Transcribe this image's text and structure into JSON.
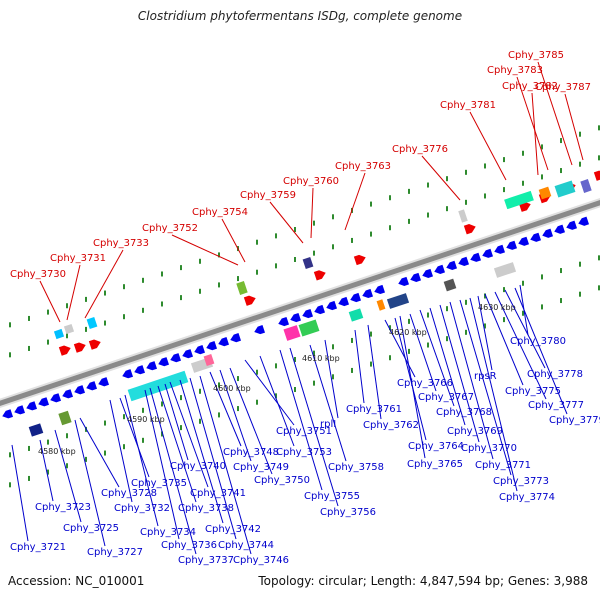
{
  "title": "Clostridium phytofermentans ISDg, complete genome",
  "accession": "Accession: NC_010001",
  "summary": "Topology: circular; Length: 4,847,594 bp; Genes: 3,988",
  "colors": {
    "top_label": "#d40000",
    "bottom_label": "#0000cc",
    "backbone": "#8a8a8a",
    "forward_gene": "#ee0000",
    "reverse_gene": "#0000ee",
    "tick": "#2e8b2e"
  },
  "scale_labels": [
    "4580 kbp",
    "4590 kbp",
    "4600 kbp",
    "4610 kbp",
    "4620 kbp",
    "4630 kbp"
  ],
  "top_labels": [
    "Cphy_3730",
    "Cphy_3731",
    "Cphy_3733",
    "Cphy_3752",
    "Cphy_3754",
    "Cphy_3759",
    "Cphy_3760",
    "Cphy_3763",
    "Cphy_3776",
    "Cphy_3781",
    "Cphy_3782",
    "Cphy_3783",
    "Cphy_3785",
    "Cphy_3787"
  ],
  "bottom_labels": [
    "Cphy_3721",
    "Cphy_3723",
    "Cphy_3725",
    "Cphy_3727",
    "Cphy_3728",
    "Cphy_3732",
    "Cphy_3734",
    "Cphy_3735",
    "Cphy_3736",
    "Cphy_3737",
    "Cphy_3738",
    "Cphy_3740",
    "Cphy_3741",
    "Cphy_3742",
    "Cphy_3744",
    "Cphy_3746",
    "Cphy_3748",
    "Cphy_3749",
    "Cphy_3750",
    "Cphy_3751",
    "Cphy_3753",
    "Cphy_3755",
    "Cphy_3756",
    "rplI",
    "Cphy_3758",
    "Cphy_3761",
    "Cphy_3762",
    "Cphy_3764",
    "Cphy_3765",
    "Cphy_3766",
    "Cphy_3767",
    "Cphy_3768",
    "Cphy_3769",
    "Cphy_3770",
    "Cphy_3771",
    "Cphy_3773",
    "Cphy_3774",
    "rpsR",
    "Cphy_3775",
    "Cphy_3777",
    "Cphy_3778",
    "Cphy_3779",
    "Cphy_3780"
  ]
}
